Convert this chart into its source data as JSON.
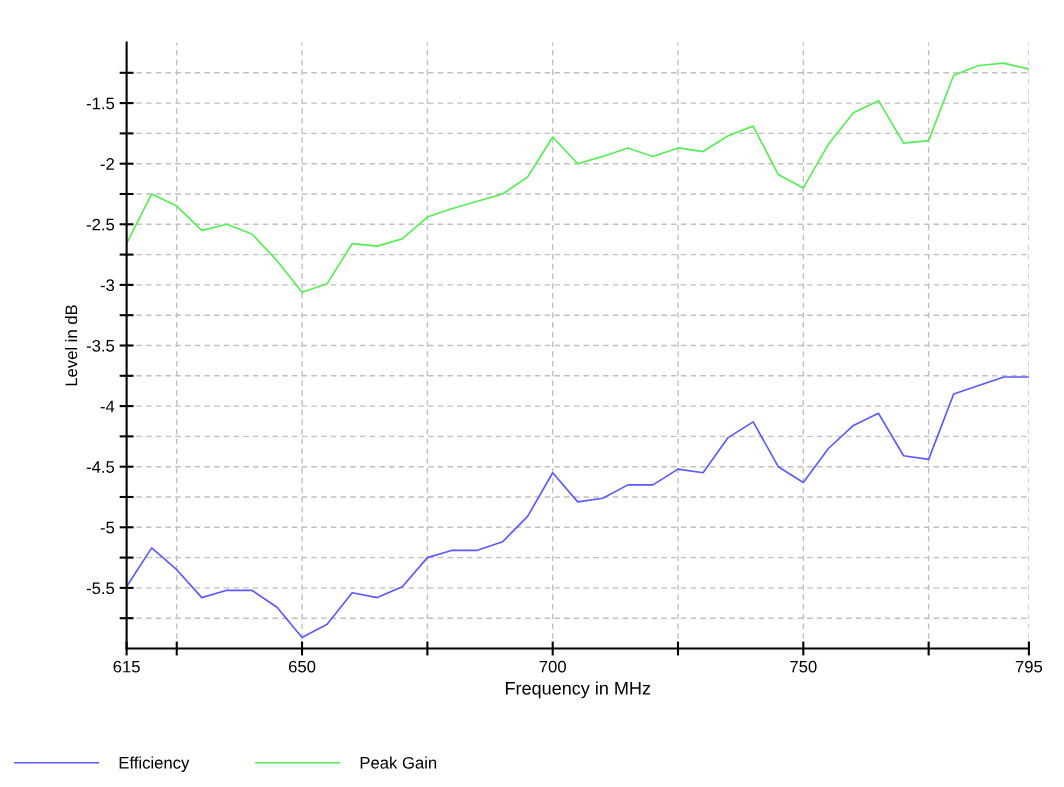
{
  "chart_data": {
    "type": "line",
    "xlabel": "Frequency in MHz",
    "ylabel": "Level in dB",
    "x": [
      615,
      620,
      625,
      630,
      635,
      640,
      645,
      650,
      655,
      660,
      665,
      670,
      675,
      680,
      685,
      690,
      695,
      700,
      705,
      710,
      715,
      720,
      725,
      730,
      735,
      740,
      745,
      750,
      755,
      760,
      765,
      770,
      775,
      780,
      785,
      790,
      795
    ],
    "series": [
      {
        "name": "Efficiency",
        "color": "#5a5aff",
        "values": [
          -5.49,
          -5.17,
          -5.35,
          -5.58,
          -5.52,
          -5.52,
          -5.66,
          -5.91,
          -5.8,
          -5.54,
          -5.58,
          -5.49,
          -5.25,
          -5.19,
          -5.19,
          -5.12,
          -4.91,
          -4.55,
          -4.79,
          -4.76,
          -4.65,
          -4.65,
          -4.52,
          -4.55,
          -4.26,
          -4.13,
          -4.5,
          -4.63,
          -4.35,
          -4.16,
          -4.06,
          -4.41,
          -4.44,
          -3.9,
          -3.83,
          -3.76,
          -3.76
        ]
      },
      {
        "name": "Peak Gain",
        "color": "#55ee55",
        "values": [
          -2.66,
          -2.25,
          -2.35,
          -2.55,
          -2.5,
          -2.58,
          -2.8,
          -3.06,
          -2.99,
          -2.66,
          -2.68,
          -2.62,
          -2.44,
          -2.37,
          -2.31,
          -2.25,
          -2.11,
          -1.78,
          -2.0,
          -1.94,
          -1.87,
          -1.94,
          -1.87,
          -1.9,
          -1.77,
          -1.69,
          -2.09,
          -2.2,
          -1.84,
          -1.58,
          -1.48,
          -1.83,
          -1.81,
          -1.27,
          -1.19,
          -1.17,
          -1.22
        ]
      }
    ],
    "xlim": [
      615,
      795
    ],
    "xticks": [
      615,
      {
        "value": 625,
        "label": null
      },
      650,
      {
        "value": 675,
        "label": null
      },
      700,
      {
        "value": 725,
        "label": null
      },
      750,
      {
        "value": 775,
        "label": null
      },
      795
    ],
    "ylim": [
      -6,
      -1
    ],
    "yticks": [
      {
        "value": -5.75,
        "label": null
      },
      -5.5,
      {
        "value": -5.25,
        "label": null
      },
      -5,
      {
        "value": -4.75,
        "label": null
      },
      -4.5,
      {
        "value": -4.25,
        "label": null
      },
      -4,
      {
        "value": -3.75,
        "label": null
      },
      -3.5,
      {
        "value": -3.25,
        "label": null
      },
      -3,
      {
        "value": -2.75,
        "label": null
      },
      -2.5,
      {
        "value": -2.25,
        "label": null
      },
      -2,
      {
        "value": -1.75,
        "label": null
      },
      -1.5,
      {
        "value": -1.25,
        "label": null
      }
    ],
    "grid": true,
    "legend": "bottom",
    "marker": "none",
    "line_style": "solid"
  }
}
